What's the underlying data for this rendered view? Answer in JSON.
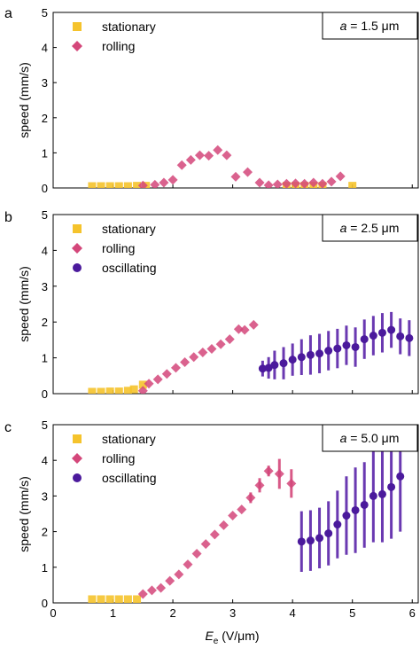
{
  "figure": {
    "xlabel_main": "E",
    "xlabel_sub": "e",
    "xlabel_unit": " (V/μm)",
    "x_ticks": [
      "0",
      "1",
      "2",
      "3",
      "4",
      "5",
      "6"
    ]
  },
  "colors": {
    "stationary": "#f5c32c",
    "rolling": "#d4477a",
    "oscillating": "#4b1a9c",
    "oscillating_bar": "#5a24a8"
  },
  "chart_data": [
    {
      "type": "scatter",
      "panel_label": "a",
      "size_label": "a = 1.5 μm",
      "size_label_var": "a",
      "size_label_rest": " = 1.5 μm",
      "ylabel": "speed (mm/s)",
      "xlim": [
        0,
        6.1
      ],
      "ylim": [
        0,
        5
      ],
      "y_ticks": [
        "0",
        "1",
        "2",
        "3",
        "4",
        "5"
      ],
      "legend": [
        "stationary",
        "rolling"
      ],
      "series": [
        {
          "name": "stationary",
          "marker": "square",
          "points": [
            [
              0.65,
              0.05
            ],
            [
              0.8,
              0.05
            ],
            [
              0.95,
              0.05
            ],
            [
              1.1,
              0.05
            ],
            [
              1.25,
              0.05
            ],
            [
              1.4,
              0.06
            ],
            [
              1.55,
              0.06
            ],
            [
              3.9,
              0.06
            ],
            [
              4.05,
              0.06
            ],
            [
              4.2,
              0.06
            ],
            [
              4.35,
              0.06
            ],
            [
              4.5,
              0.06
            ],
            [
              5.0,
              0.06
            ]
          ]
        },
        {
          "name": "rolling",
          "marker": "diamond",
          "points": [
            [
              1.5,
              0.07
            ],
            [
              1.7,
              0.09
            ],
            [
              1.85,
              0.15
            ],
            [
              2.0,
              0.23
            ],
            [
              2.15,
              0.65
            ],
            [
              2.3,
              0.8
            ],
            [
              2.45,
              0.93
            ],
            [
              2.6,
              0.92
            ],
            [
              2.75,
              1.08
            ],
            [
              2.9,
              0.93
            ],
            [
              3.05,
              0.32
            ],
            [
              3.25,
              0.45
            ],
            [
              3.45,
              0.15
            ],
            [
              3.6,
              0.08
            ],
            [
              3.75,
              0.1
            ],
            [
              3.9,
              0.12
            ],
            [
              4.05,
              0.13
            ],
            [
              4.2,
              0.12
            ],
            [
              4.35,
              0.15
            ],
            [
              4.5,
              0.12
            ],
            [
              4.65,
              0.18
            ],
            [
              4.8,
              0.33
            ]
          ]
        }
      ]
    },
    {
      "type": "scatter",
      "panel_label": "b",
      "size_label": "a = 2.5 μm",
      "size_label_var": "a",
      "size_label_rest": " = 2.5 μm",
      "ylabel": "speed (mm/s)",
      "xlim": [
        0,
        6.1
      ],
      "ylim": [
        0,
        5
      ],
      "y_ticks": [
        "0",
        "1",
        "2",
        "3",
        "4",
        "5"
      ],
      "legend": [
        "stationary",
        "rolling",
        "oscillating"
      ],
      "series": [
        {
          "name": "stationary",
          "marker": "square",
          "points": [
            [
              0.65,
              0.05
            ],
            [
              0.8,
              0.05
            ],
            [
              0.95,
              0.06
            ],
            [
              1.1,
              0.06
            ],
            [
              1.25,
              0.08
            ],
            [
              1.35,
              0.12
            ],
            [
              1.5,
              0.25
            ]
          ]
        },
        {
          "name": "rolling",
          "marker": "diamond",
          "points": [
            [
              1.5,
              0.08
            ],
            [
              1.6,
              0.28
            ],
            [
              1.75,
              0.4
            ],
            [
              1.9,
              0.55
            ],
            [
              2.05,
              0.72
            ],
            [
              2.2,
              0.88
            ],
            [
              2.35,
              1.02
            ],
            [
              2.5,
              1.15
            ],
            [
              2.65,
              1.25
            ],
            [
              2.8,
              1.38
            ],
            [
              2.95,
              1.52
            ],
            [
              3.1,
              1.8
            ],
            [
              3.2,
              1.78
            ],
            [
              3.35,
              1.92
            ]
          ]
        },
        {
          "name": "oscillating",
          "marker": "circle",
          "points": [
            [
              3.5,
              0.7,
              0.22
            ],
            [
              3.6,
              0.72,
              0.3
            ],
            [
              3.7,
              0.8,
              0.4
            ],
            [
              3.85,
              0.85,
              0.45
            ],
            [
              4.0,
              0.95,
              0.45
            ],
            [
              4.15,
              1.02,
              0.5
            ],
            [
              4.3,
              1.08,
              0.55
            ],
            [
              4.45,
              1.12,
              0.55
            ],
            [
              4.6,
              1.2,
              0.55
            ],
            [
              4.75,
              1.26,
              0.55
            ],
            [
              4.9,
              1.35,
              0.55
            ],
            [
              5.05,
              1.3,
              0.55
            ],
            [
              5.2,
              1.52,
              0.55
            ],
            [
              5.35,
              1.62,
              0.55
            ],
            [
              5.5,
              1.7,
              0.55
            ],
            [
              5.65,
              1.78,
              0.5
            ],
            [
              5.8,
              1.6,
              0.5
            ],
            [
              5.95,
              1.55,
              0.5
            ]
          ]
        }
      ]
    },
    {
      "type": "scatter",
      "panel_label": "c",
      "size_label": "a = 5.0 μm",
      "size_label_var": "a",
      "size_label_rest": " = 5.0 μm",
      "ylabel": "speed (mm/s)",
      "xlim": [
        0,
        6.1
      ],
      "ylim": [
        0,
        5
      ],
      "y_ticks": [
        "0",
        "1",
        "2",
        "3",
        "4",
        "5"
      ],
      "legend": [
        "stationary",
        "rolling",
        "oscillating"
      ],
      "series": [
        {
          "name": "stationary",
          "marker": "square",
          "points": [
            [
              0.65,
              0.1
            ],
            [
              0.8,
              0.1
            ],
            [
              0.95,
              0.1
            ],
            [
              1.1,
              0.1
            ],
            [
              1.25,
              0.1
            ],
            [
              1.4,
              0.1
            ]
          ]
        },
        {
          "name": "rolling",
          "marker": "diamond",
          "points": [
            [
              1.5,
              0.25,
              0
            ],
            [
              1.65,
              0.35,
              0
            ],
            [
              1.8,
              0.42,
              0
            ],
            [
              1.95,
              0.62,
              0
            ],
            [
              2.1,
              0.8,
              0
            ],
            [
              2.25,
              1.08,
              0
            ],
            [
              2.4,
              1.38,
              0
            ],
            [
              2.55,
              1.65,
              0
            ],
            [
              2.7,
              1.92,
              0
            ],
            [
              2.85,
              2.18,
              0
            ],
            [
              3.0,
              2.45,
              0
            ],
            [
              3.15,
              2.62,
              0
            ],
            [
              3.3,
              2.95,
              0.15
            ],
            [
              3.45,
              3.3,
              0.2
            ],
            [
              3.6,
              3.7,
              0.15
            ],
            [
              3.78,
              3.62,
              0.42
            ],
            [
              3.98,
              3.35,
              0.4
            ]
          ]
        },
        {
          "name": "oscillating",
          "marker": "circle",
          "points": [
            [
              4.15,
              1.72,
              0.85
            ],
            [
              4.3,
              1.75,
              0.85
            ],
            [
              4.45,
              1.82,
              0.85
            ],
            [
              4.6,
              1.95,
              0.9
            ],
            [
              4.75,
              2.2,
              0.95
            ],
            [
              4.9,
              2.45,
              1.1
            ],
            [
              5.05,
              2.6,
              1.2
            ],
            [
              5.2,
              2.75,
              1.2
            ],
            [
              5.35,
              3.0,
              1.3
            ],
            [
              5.5,
              3.05,
              1.35
            ],
            [
              5.65,
              3.25,
              1.45
            ],
            [
              5.8,
              3.55,
              1.55
            ]
          ]
        }
      ]
    }
  ]
}
